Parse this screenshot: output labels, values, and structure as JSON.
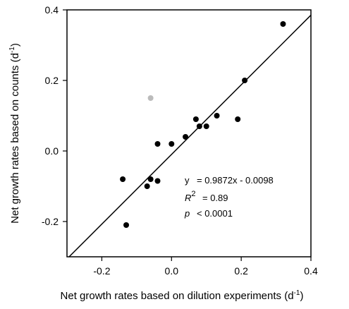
{
  "chart_data": {
    "type": "scatter",
    "xlabel": "Net growth rates based on dilution experiments (d",
    "xlabel_sup": "-1",
    "xlabel_end": ")",
    "ylabel": "Net growth rates based on counts (d",
    "ylabel_sup": "-1",
    "ylabel_end": ")",
    "xlim": [
      -0.3,
      0.4
    ],
    "ylim": [
      -0.3,
      0.4
    ],
    "xticks": [
      -0.2,
      0.0,
      0.2,
      0.4
    ],
    "xtick_labels": [
      "-0.2",
      "0.0",
      "0.2",
      "0.4"
    ],
    "yticks": [
      -0.2,
      0.0,
      0.2,
      0.4
    ],
    "ytick_labels": [
      "-0.2",
      "0.0",
      "0.2",
      "0.4"
    ],
    "grid": false,
    "points": [
      {
        "x": 0.32,
        "y": 0.36,
        "color": "#000000"
      },
      {
        "x": 0.21,
        "y": 0.2,
        "color": "#000000"
      },
      {
        "x": -0.06,
        "y": 0.15,
        "color": "#bbbbbb"
      },
      {
        "x": 0.07,
        "y": 0.09,
        "color": "#000000"
      },
      {
        "x": 0.13,
        "y": 0.1,
        "color": "#000000"
      },
      {
        "x": 0.19,
        "y": 0.09,
        "color": "#000000"
      },
      {
        "x": 0.08,
        "y": 0.07,
        "color": "#000000"
      },
      {
        "x": 0.1,
        "y": 0.07,
        "color": "#000000"
      },
      {
        "x": 0.04,
        "y": 0.04,
        "color": "#000000"
      },
      {
        "x": -0.04,
        "y": 0.02,
        "color": "#000000"
      },
      {
        "x": 0.0,
        "y": 0.02,
        "color": "#000000"
      },
      {
        "x": -0.14,
        "y": -0.08,
        "color": "#000000"
      },
      {
        "x": -0.06,
        "y": -0.08,
        "color": "#000000"
      },
      {
        "x": -0.04,
        "y": -0.085,
        "color": "#000000"
      },
      {
        "x": -0.07,
        "y": -0.1,
        "color": "#000000"
      },
      {
        "x": -0.13,
        "y": -0.21,
        "color": "#000000"
      }
    ],
    "fit_line": {
      "slope": 0.9872,
      "intercept": -0.0098,
      "color": "#000000"
    },
    "annotations": {
      "eq_var": "y",
      "eq_rhs": "= 0.9872x - 0.0098",
      "r2_var": "R",
      "r2_sup": "2",
      "r2_rhs": "= 0.89",
      "p_var": "p",
      "p_rhs": "< 0.0001"
    }
  }
}
